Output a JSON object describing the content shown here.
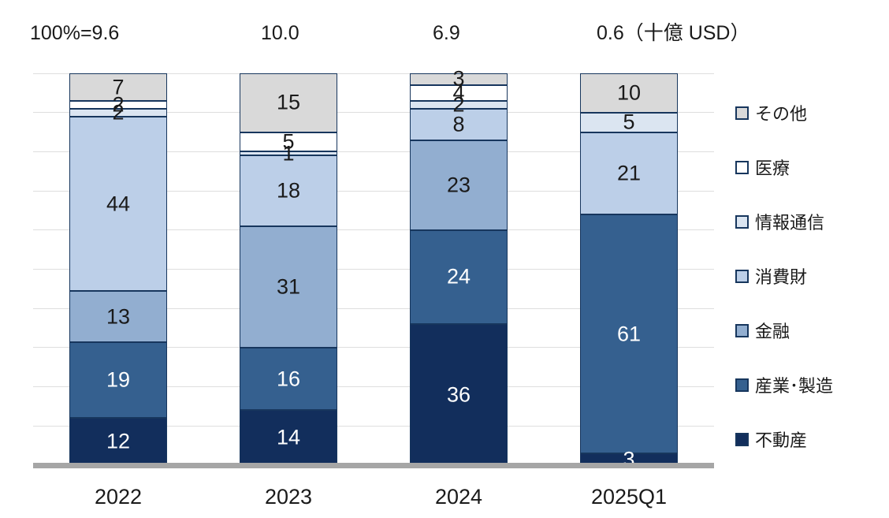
{
  "header": {
    "totals": [
      "100%=9.6",
      "10.0",
      "6.9",
      "0.6（十億 USD）"
    ]
  },
  "chart_data": {
    "type": "bar",
    "subtype": "stacked-100-percent",
    "title": "",
    "unit": "十億 USD",
    "totals_billion_usd": [
      9.6,
      10.0,
      6.9,
      0.6
    ],
    "totals_labels": [
      "100%=9.6",
      "10.0",
      "6.9",
      "0.6（十億 USD）"
    ],
    "categories": [
      "2022",
      "2023",
      "2024",
      "2025Q1"
    ],
    "series": [
      {
        "name": "不動産",
        "color": "#122e5c",
        "label_color": "#ffffff",
        "values": [
          12,
          14,
          36,
          3
        ]
      },
      {
        "name": "産業･製造",
        "color": "#35608f",
        "label_color": "#ffffff",
        "values": [
          19,
          16,
          24,
          61
        ]
      },
      {
        "name": "金融",
        "color": "#92aed0",
        "label_color": "#1a1a1a",
        "values": [
          13,
          31,
          23,
          0
        ]
      },
      {
        "name": "消費財",
        "color": "#bccfe8",
        "label_color": "#1a1a1a",
        "values": [
          44,
          18,
          8,
          21
        ]
      },
      {
        "name": "情報通信",
        "color": "#dbe5f1",
        "label_color": "#1a1a1a",
        "values": [
          2,
          1,
          2,
          5
        ]
      },
      {
        "name": "医療",
        "color": "#ffffff",
        "label_color": "#1a1a1a",
        "values": [
          2,
          5,
          4,
          0
        ]
      },
      {
        "name": "その他",
        "color": "#d9d9d9",
        "label_color": "#1a1a1a",
        "values": [
          7,
          15,
          3,
          10
        ]
      }
    ],
    "legend": {
      "position": "right",
      "order_top_to_bottom": [
        "その他",
        "医療",
        "情報通信",
        "消費財",
        "金融",
        "産業･製造",
        "不動産"
      ]
    },
    "axis": {
      "y_min": 0,
      "y_max_percent": 100,
      "gridline_interval_percent": 10,
      "grid": true,
      "baseline_color": "#a6a6a6",
      "gridline_color": "#dedede",
      "segment_border_color": "#17365d"
    }
  }
}
